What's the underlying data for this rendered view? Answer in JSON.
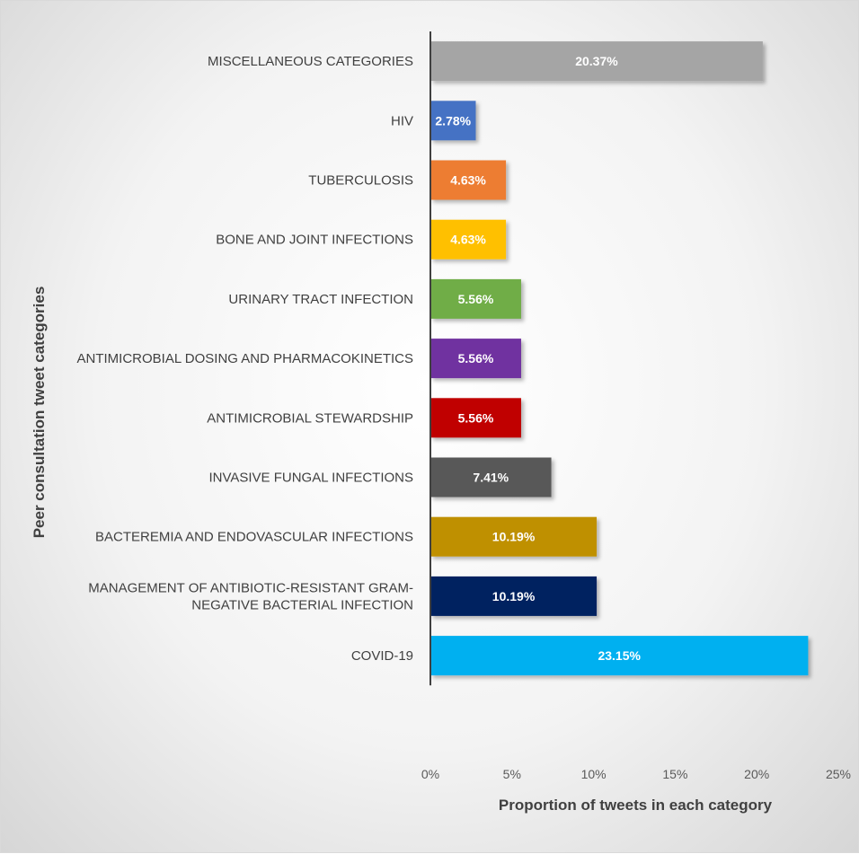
{
  "chart_data": {
    "type": "bar",
    "orientation": "horizontal",
    "title": "",
    "xlabel": "Proportion of tweets in each category",
    "ylabel": "Peer consultation tweet categories",
    "xlim": [
      0,
      25
    ],
    "x_ticks": [
      "0%",
      "5%",
      "10%",
      "15%",
      "20%",
      "25%"
    ],
    "grid": false,
    "legend": "none",
    "categories": [
      [
        "MISCELLANEOUS CATEGORIES"
      ],
      [
        "HIV"
      ],
      [
        "TUBERCULOSIS"
      ],
      [
        "BONE AND JOINT INFECTIONS"
      ],
      [
        "URINARY TRACT INFECTION"
      ],
      [
        "ANTIMICROBIAL DOSING AND PHARMACOKINETICS"
      ],
      [
        "ANTIMICROBIAL STEWARDSHIP"
      ],
      [
        "INVASIVE FUNGAL INFECTIONS"
      ],
      [
        "BACTEREMIA AND ENDOVASCULAR INFECTIONS"
      ],
      [
        "MANAGEMENT OF ANTIBIOTIC-RESISTANT GRAM-",
        "NEGATIVE BACTERIAL INFECTION"
      ],
      [
        "COVID-19"
      ]
    ],
    "values": [
      20.37,
      2.78,
      4.63,
      4.63,
      5.56,
      5.56,
      5.56,
      7.41,
      10.19,
      10.19,
      23.15
    ],
    "data_labels": [
      "20.37%",
      "2.78%",
      "4.63%",
      "4.63%",
      "5.56%",
      "5.56%",
      "5.56%",
      "7.41%",
      "10.19%",
      "10.19%",
      "23.15%"
    ],
    "colors": [
      "#a5a5a5",
      "#4472c4",
      "#ed7d31",
      "#ffc000",
      "#70ad47",
      "#7030a0",
      "#c00000",
      "#595959",
      "#bf9000",
      "#002060",
      "#00b0f0"
    ]
  }
}
